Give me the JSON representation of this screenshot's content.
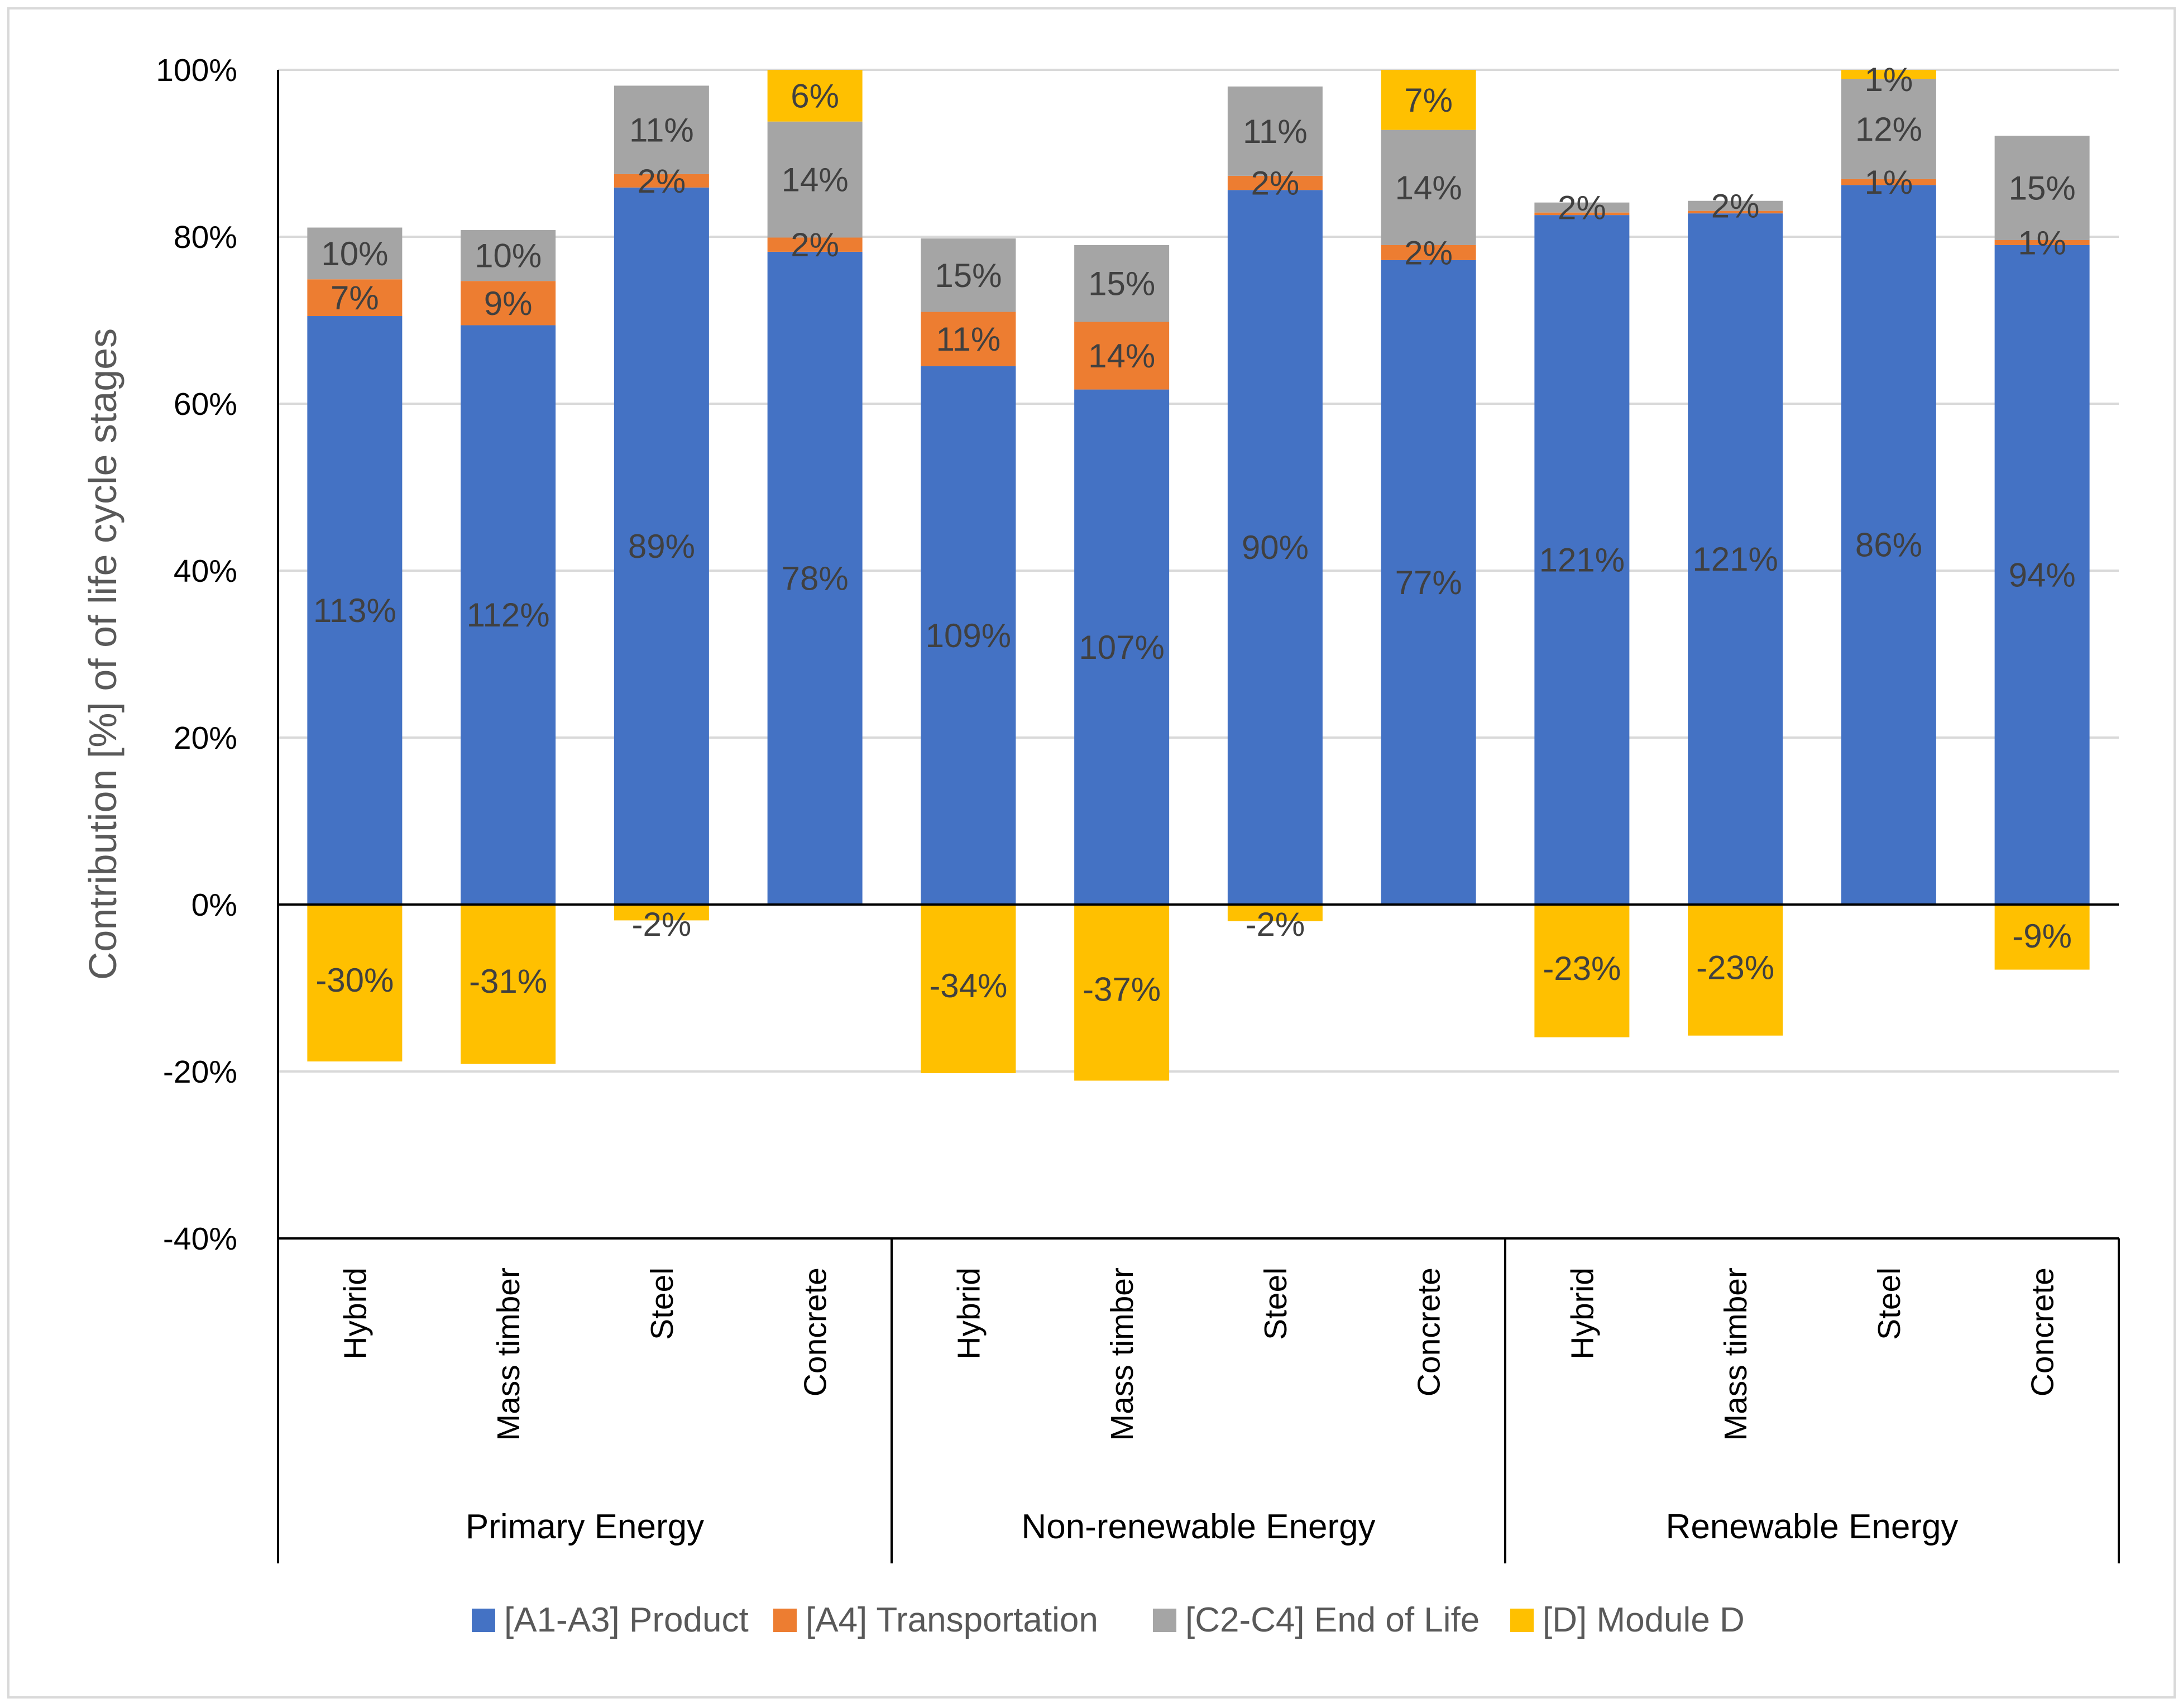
{
  "chart_data": {
    "type": "stacked-bar",
    "title": "",
    "ylabel": "Contribution [%] of of life cycle stages",
    "xlabel": "",
    "ylim": [
      -40,
      100
    ],
    "yticks": [
      -40,
      -20,
      0,
      20,
      40,
      60,
      80,
      100
    ],
    "ytick_labels": [
      "-40%",
      "-20%",
      "0%",
      "20%",
      "40%",
      "60%",
      "80%",
      "100%"
    ],
    "grid": true,
    "legend_position": "bottom",
    "colors": {
      "product": "#4472C4",
      "transport": "#ED7D31",
      "eol": "#A5A5A5",
      "moduleD": "#FFC000"
    },
    "series": [
      {
        "key": "product",
        "name": "[A1-A3] Product"
      },
      {
        "key": "transport",
        "name": "[A4] Transportation"
      },
      {
        "key": "eol",
        "name": "[C2-C4] End of Life"
      },
      {
        "key": "moduleD",
        "name": "[D] Module D"
      }
    ],
    "groups": [
      {
        "name": "Primary Energy",
        "bars": [
          {
            "category": "Hybrid",
            "product": 70.5,
            "transport": 4.4,
            "eol": 6.2,
            "moduleD": -18.8,
            "labels": {
              "product": "113%",
              "transport": "7%",
              "eol": "10%",
              "moduleD": "-30%"
            }
          },
          {
            "category": "Mass timber",
            "product": 69.4,
            "transport": 5.3,
            "eol": 6.1,
            "moduleD": -19.1,
            "labels": {
              "product": "112%",
              "transport": "9%",
              "eol": "10%",
              "moduleD": "-31%"
            }
          },
          {
            "category": "Steel",
            "product": 85.9,
            "transport": 1.6,
            "eol": 10.6,
            "moduleD": -1.9,
            "labels": {
              "product": "89%",
              "transport": "2%",
              "eol": "11%",
              "moduleD": "-2%"
            }
          },
          {
            "category": "Concrete",
            "product": 78.2,
            "transport": 1.7,
            "eol": 13.9,
            "moduleD": 6.2,
            "labels": {
              "product": "78%",
              "transport": "2%",
              "eol": "14%",
              "moduleD": "6%"
            }
          }
        ]
      },
      {
        "name": "Non-renewable Energy",
        "bars": [
          {
            "category": "Hybrid",
            "product": 64.5,
            "transport": 6.5,
            "eol": 8.8,
            "moduleD": -20.2,
            "labels": {
              "product": "109%",
              "transport": "11%",
              "eol": "15%",
              "moduleD": "-34%"
            }
          },
          {
            "category": "Mass timber",
            "product": 61.7,
            "transport": 8.1,
            "eol": 9.2,
            "moduleD": -21.1,
            "labels": {
              "product": "107%",
              "transport": "14%",
              "eol": "15%",
              "moduleD": "-37%"
            }
          },
          {
            "category": "Steel",
            "product": 85.6,
            "transport": 1.7,
            "eol": 10.7,
            "moduleD": -2.0,
            "labels": {
              "product": "90%",
              "transport": "2%",
              "eol": "11%",
              "moduleD": "-2%"
            }
          },
          {
            "category": "Concrete",
            "product": 77.2,
            "transport": 1.8,
            "eol": 13.8,
            "moduleD": 7.2,
            "labels": {
              "product": "77%",
              "transport": "2%",
              "eol": "14%",
              "moduleD": "7%"
            }
          }
        ]
      },
      {
        "name": "Renewable Energy",
        "bars": [
          {
            "category": "Hybrid",
            "product": 82.6,
            "transport": 0.3,
            "eol": 1.2,
            "moduleD": -15.9,
            "labels": {
              "product": "121%",
              "transport": "",
              "eol": "2%",
              "moduleD": "-23%"
            }
          },
          {
            "category": "Mass timber",
            "product": 82.8,
            "transport": 0.3,
            "eol": 1.2,
            "moduleD": -15.7,
            "labels": {
              "product": "121%",
              "transport": "",
              "eol": "2%",
              "moduleD": "-23%"
            }
          },
          {
            "category": "Steel",
            "product": 86.2,
            "transport": 0.7,
            "eol": 12.0,
            "moduleD": 1.1,
            "labels": {
              "product": "86%",
              "transport": "1%",
              "eol": "12%",
              "moduleD": "1%"
            }
          },
          {
            "category": "Concrete",
            "product": 79.0,
            "transport": 0.6,
            "eol": 12.5,
            "moduleD": -7.8,
            "labels": {
              "product": "94%",
              "transport": "1%",
              "eol": "15%",
              "moduleD": "-9%"
            }
          }
        ]
      }
    ]
  }
}
